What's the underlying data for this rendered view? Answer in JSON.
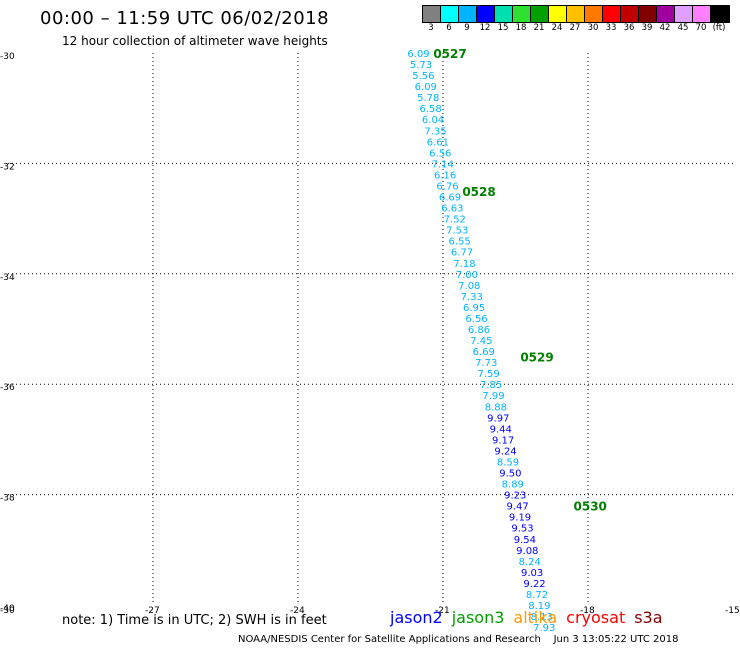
{
  "header": {
    "title": "00:00 – 11:59 UTC 06/02/2018",
    "subtitle": "12 hour collection of altimeter wave heights"
  },
  "colorbar": {
    "colors": [
      "#808080",
      "#00ffff",
      "#00b4ff",
      "#0000ff",
      "#00e0b0",
      "#30e030",
      "#00a000",
      "#ffff00",
      "#ffc000",
      "#ff7800",
      "#ff0000",
      "#c00000",
      "#800000",
      "#a000a0",
      "#e0a0ff",
      "#ff80ff",
      "#000000"
    ],
    "labels": [
      "3",
      "6",
      "9",
      "12",
      "15",
      "18",
      "21",
      "24",
      "27",
      "30",
      "33",
      "36",
      "39",
      "42",
      "45",
      "70",
      "(ft)"
    ]
  },
  "chart_data": {
    "type": "scatter",
    "xlim": [
      -30,
      -15
    ],
    "ylim": [
      -40,
      -30
    ],
    "x_ticks": [
      -30,
      -27,
      -24,
      -21,
      -18,
      -15
    ],
    "y_ticks": [
      -30,
      -32,
      -34,
      -36,
      -38,
      -40
    ],
    "series": [
      {
        "color": "#00b4ff",
        "points": [
          {
            "x": -21.55,
            "y": -30.0,
            "v": "6.09"
          },
          {
            "x": -21.5,
            "y": -30.2,
            "v": "5.73"
          },
          {
            "x": -21.45,
            "y": -30.4,
            "v": "5.56"
          },
          {
            "x": -21.4,
            "y": -30.6,
            "v": "6.09"
          },
          {
            "x": -21.35,
            "y": -30.8,
            "v": "5.78"
          },
          {
            "x": -21.3,
            "y": -31.0,
            "v": "6.58"
          },
          {
            "x": -21.25,
            "y": -31.2,
            "v": "6.04"
          },
          {
            "x": -21.2,
            "y": -31.4,
            "v": "7.35"
          },
          {
            "x": -21.15,
            "y": -31.6,
            "v": "6.61"
          },
          {
            "x": -21.1,
            "y": -31.8,
            "v": "6.56"
          },
          {
            "x": -21.05,
            "y": -32.0,
            "v": "7.14"
          },
          {
            "x": -21.0,
            "y": -32.2,
            "v": "6.16"
          },
          {
            "x": -20.95,
            "y": -32.4,
            "v": "6.76"
          },
          {
            "x": -20.9,
            "y": -32.6,
            "v": "6.69"
          },
          {
            "x": -20.85,
            "y": -32.8,
            "v": "6.63"
          },
          {
            "x": -20.8,
            "y": -33.0,
            "v": "7.52"
          },
          {
            "x": -20.75,
            "y": -33.2,
            "v": "7.53"
          },
          {
            "x": -20.7,
            "y": -33.4,
            "v": "6.55"
          },
          {
            "x": -20.65,
            "y": -33.6,
            "v": "6.77"
          },
          {
            "x": -20.6,
            "y": -33.8,
            "v": "7.18"
          },
          {
            "x": -20.55,
            "y": -34.0,
            "v": "7.00"
          },
          {
            "x": -20.5,
            "y": -34.2,
            "v": "7.08"
          },
          {
            "x": -20.45,
            "y": -34.4,
            "v": "7.33"
          },
          {
            "x": -20.4,
            "y": -34.6,
            "v": "6.95"
          },
          {
            "x": -20.35,
            "y": -34.8,
            "v": "6.56"
          },
          {
            "x": -20.3,
            "y": -35.0,
            "v": "6.86"
          },
          {
            "x": -20.25,
            "y": -35.2,
            "v": "7.45"
          },
          {
            "x": -20.2,
            "y": -35.4,
            "v": "6.69"
          },
          {
            "x": -20.15,
            "y": -35.6,
            "v": "7.73"
          },
          {
            "x": -20.1,
            "y": -35.8,
            "v": "7.59"
          },
          {
            "x": -20.05,
            "y": -36.0,
            "v": "7.85"
          },
          {
            "x": -20.0,
            "y": -36.2,
            "v": "7.99"
          },
          {
            "x": -19.95,
            "y": -36.4,
            "v": "8.88"
          }
        ]
      },
      {
        "color": "#0000ff",
        "points": [
          {
            "x": -19.9,
            "y": -36.6,
            "v": "9.97"
          },
          {
            "x": -19.85,
            "y": -36.8,
            "v": "9.44"
          },
          {
            "x": -19.8,
            "y": -37.0,
            "v": "9.17"
          },
          {
            "x": -19.75,
            "y": -37.2,
            "v": "9.24"
          }
        ]
      },
      {
        "color": "#00b4ff",
        "points": [
          {
            "x": -19.7,
            "y": -37.4,
            "v": "8.59"
          }
        ]
      },
      {
        "color": "#0000ff",
        "points": [
          {
            "x": -19.65,
            "y": -37.6,
            "v": "9.50"
          }
        ]
      },
      {
        "color": "#00b4ff",
        "points": [
          {
            "x": -19.6,
            "y": -37.8,
            "v": "8.89"
          }
        ]
      },
      {
        "color": "#0000ff",
        "points": [
          {
            "x": -19.55,
            "y": -38.0,
            "v": "9.23"
          },
          {
            "x": -19.5,
            "y": -38.2,
            "v": "9.47"
          },
          {
            "x": -19.45,
            "y": -38.4,
            "v": "9.19"
          },
          {
            "x": -19.4,
            "y": -38.6,
            "v": "9.53"
          },
          {
            "x": -19.35,
            "y": -38.8,
            "v": "9.54"
          },
          {
            "x": -19.3,
            "y": -39.0,
            "v": "9.08"
          }
        ]
      },
      {
        "color": "#00b4ff",
        "points": [
          {
            "x": -19.25,
            "y": -39.2,
            "v": "8.24"
          }
        ]
      },
      {
        "color": "#0000ff",
        "points": [
          {
            "x": -19.2,
            "y": -39.4,
            "v": "9.03"
          },
          {
            "x": -19.15,
            "y": -39.6,
            "v": "9.22"
          }
        ]
      },
      {
        "color": "#00b4ff",
        "points": [
          {
            "x": -19.1,
            "y": -39.8,
            "v": "8.72"
          },
          {
            "x": -19.05,
            "y": -40.0,
            "v": "8.19"
          },
          {
            "x": -19.0,
            "y": -40.2,
            "v": "8.13"
          },
          {
            "x": -18.95,
            "y": -40.4,
            "v": "7.93"
          }
        ]
      }
    ],
    "time_labels": [
      {
        "x": -21.2,
        "y": -30.0,
        "text": "0527"
      },
      {
        "x": -20.6,
        "y": -32.5,
        "text": "0528"
      },
      {
        "x": -19.4,
        "y": -35.5,
        "text": "0529"
      },
      {
        "x": -18.3,
        "y": -38.2,
        "text": "0530"
      }
    ]
  },
  "note": "note: 1) Time is in UTC; 2) SWH is in feet",
  "legend": [
    {
      "label": "jason2",
      "color": "#0000ff"
    },
    {
      "label": "jason3",
      "color": "#00a000"
    },
    {
      "label": "altika",
      "color": "#ff9900"
    },
    {
      "label": "cryosat",
      "color": "#ff0000"
    },
    {
      "label": "s3a",
      "color": "#800000"
    }
  ],
  "footer": {
    "credit": "NOAA/NESDIS Center for Satellite Applications and Research",
    "timestamp": "Jun  3 13:05:22 UTC 2018"
  }
}
